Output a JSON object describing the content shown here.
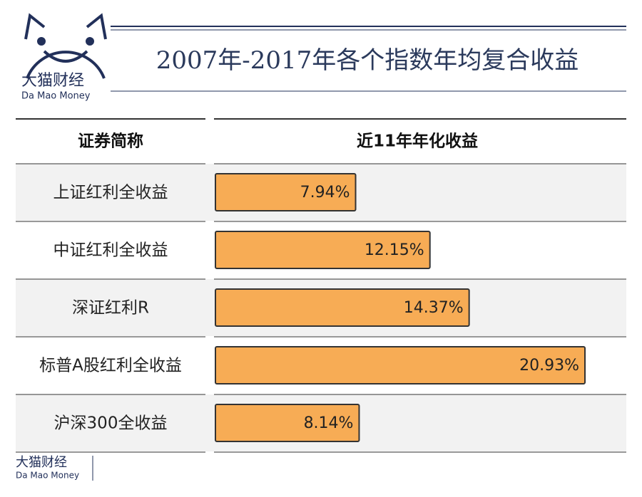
{
  "logo": {
    "name": "大猫财经",
    "subtitle": "Da Mao Money"
  },
  "footer": {
    "name": "大猫财经",
    "subtitle": "Da Mao Money"
  },
  "chart_data": {
    "type": "bar",
    "orientation": "horizontal",
    "title": "2007年-2017年各个指数年均复合收益",
    "category_header": "证券简称",
    "value_header": "近11年年化收益",
    "categories": [
      "上证红利全收益",
      "中证红利全收益",
      "深证红利R",
      "标普A股红利全收益",
      "沪深300全收益"
    ],
    "values": [
      7.94,
      12.15,
      14.37,
      20.93,
      8.14
    ],
    "value_labels": [
      "7.94%",
      "12.15%",
      "14.37%",
      "20.93%",
      "8.14%"
    ],
    "color": "#f7ac55"
  }
}
